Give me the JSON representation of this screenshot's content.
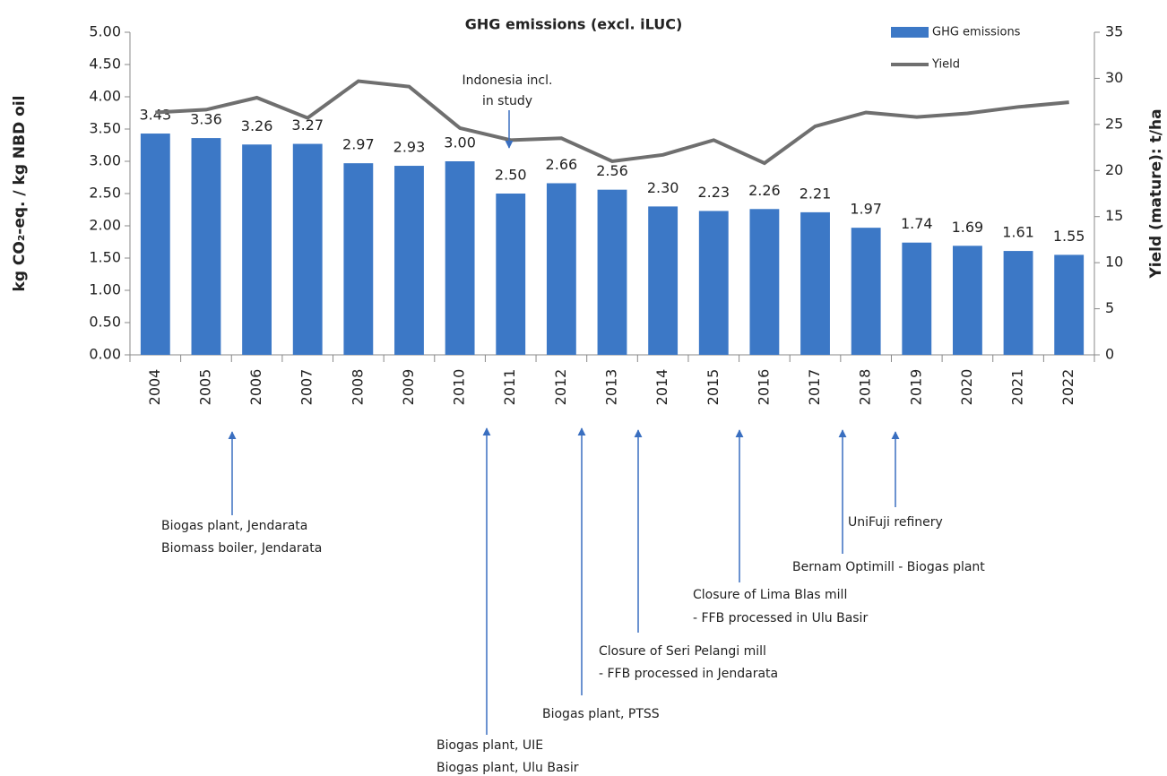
{
  "chart_data": {
    "type": "bar",
    "title": "GHG emissions (excl. iLUC)",
    "y_label": "kg CO₂-eq. / kg NBD oil",
    "y2_label": "Yield (mature): t/ha",
    "categories": [
      "2004",
      "2005",
      "2006",
      "2007",
      "2008",
      "2009",
      "2010",
      "2011",
      "2012",
      "2013",
      "2014",
      "2015",
      "2016",
      "2017",
      "2018",
      "2019",
      "2020",
      "2021",
      "2022"
    ],
    "series": [
      {
        "name": "GHG emissions",
        "type": "bar",
        "color": "#3c78c6",
        "values": [
          3.43,
          3.36,
          3.26,
          3.27,
          2.97,
          2.93,
          3.0,
          2.5,
          2.66,
          2.56,
          2.3,
          2.23,
          2.26,
          2.21,
          1.97,
          1.74,
          1.69,
          1.61,
          1.55
        ],
        "value_labels": [
          "3.43",
          "3.36",
          "3.26",
          "3.27",
          "2.97",
          "2.93",
          "3.00",
          "2.50",
          "2.66",
          "2.56",
          "2.30",
          "2.23",
          "2.26",
          "2.21",
          "1.97",
          "1.74",
          "1.69",
          "1.61",
          "1.55"
        ]
      },
      {
        "name": "Yield",
        "type": "line",
        "axis": "y2",
        "color": "#6f6f6f",
        "values": [
          26.3,
          26.6,
          27.9,
          25.7,
          29.7,
          29.1,
          24.6,
          23.3,
          23.5,
          21.0,
          21.7,
          23.3,
          20.8,
          24.8,
          26.3,
          25.8,
          26.2,
          26.9,
          27.4
        ]
      }
    ],
    "ylim": [
      0,
      5
    ],
    "yticks": [
      {
        "value": 0,
        "label": "0.00"
      },
      {
        "value": 0.5,
        "label": "0.50"
      },
      {
        "value": 1,
        "label": "1.00"
      },
      {
        "value": 1.5,
        "label": "1.50"
      },
      {
        "value": 2,
        "label": "2.00"
      },
      {
        "value": 2.5,
        "label": "2.50"
      },
      {
        "value": 3,
        "label": "3.00"
      },
      {
        "value": 3.5,
        "label": "3.50"
      },
      {
        "value": 4,
        "label": "4.00"
      },
      {
        "value": 4.5,
        "label": "4.50"
      },
      {
        "value": 5,
        "label": "5.00"
      }
    ],
    "y2lim": [
      0,
      35
    ],
    "y2ticks": [
      0,
      5,
      10,
      15,
      20,
      25,
      30,
      35
    ],
    "legend": "top-right",
    "annotations": [
      {
        "lines": [
          "Indonesia incl.",
          "in study"
        ]
      },
      {
        "lines": [
          "Biogas plant, Jendarata",
          "Biomass boiler, Jendarata"
        ]
      },
      {
        "lines": [
          "Biogas plant, UIE",
          "Biogas plant, Ulu Basir"
        ]
      },
      {
        "lines": [
          "Biogas plant, PTSS"
        ]
      },
      {
        "lines": [
          "Closure of Seri Pelangi mill",
          "- FFB processed in Jendarata"
        ]
      },
      {
        "lines": [
          "Closure of Lima Blas mill",
          "- FFB processed in Ulu Basir"
        ]
      },
      {
        "lines": [
          "Bernam Optimill - Biogas plant"
        ]
      },
      {
        "lines": [
          "UniFuji refinery"
        ]
      }
    ]
  }
}
